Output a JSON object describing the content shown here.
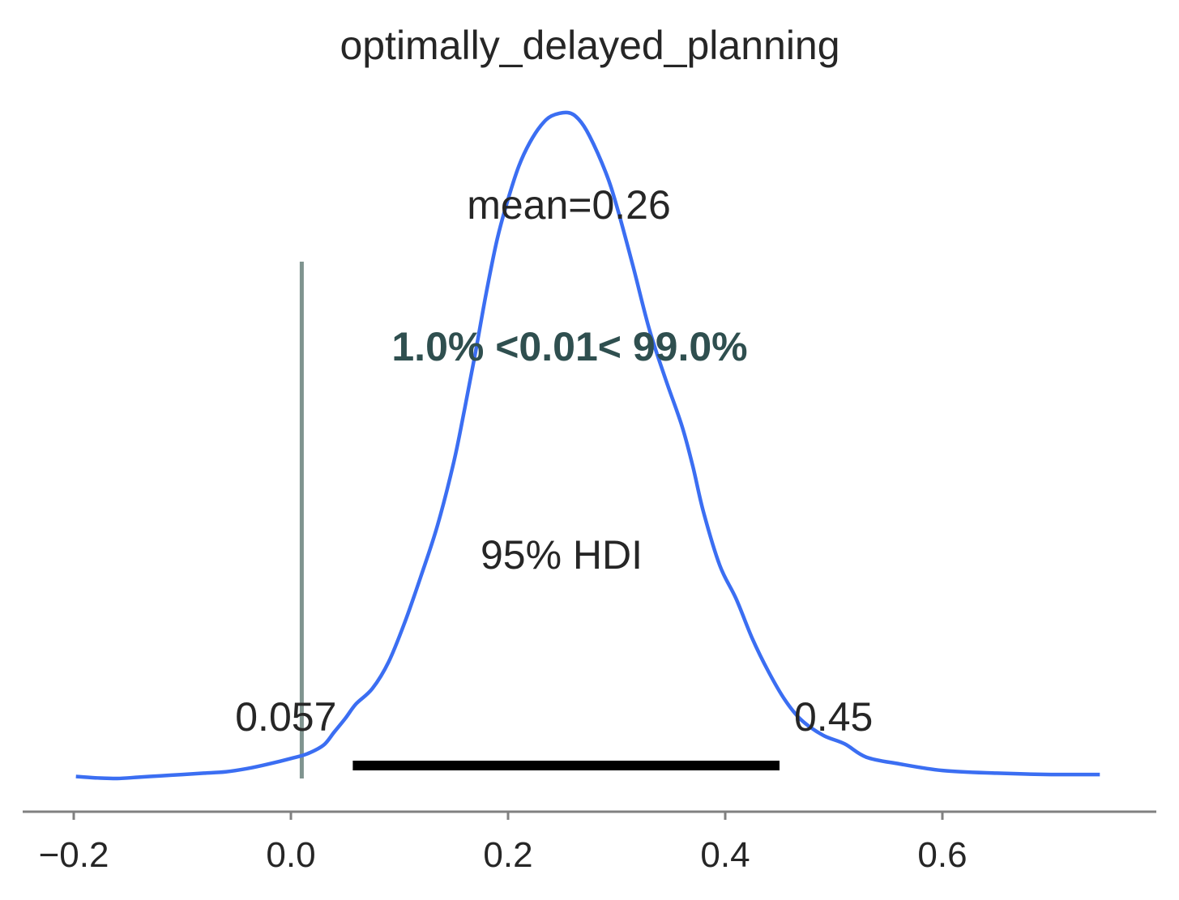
{
  "chart_data": {
    "type": "line",
    "title": "optimally_delayed_planning",
    "xlabel": "",
    "ylabel": "",
    "xlim": [
      -0.245,
      0.795
    ],
    "x_ticks": [
      -0.2,
      0.0,
      0.2,
      0.4,
      0.6
    ],
    "x_tick_labels": [
      "−0.2",
      "0.0",
      "0.2",
      "0.4",
      "0.6"
    ],
    "grid": false,
    "series": [
      {
        "type": "density",
        "color": "#3b6ef2",
        "points": [
          [
            -0.198,
            0.003
          ],
          [
            -0.18,
            0.001
          ],
          [
            -0.16,
            0.0
          ],
          [
            -0.14,
            0.002
          ],
          [
            -0.12,
            0.004
          ],
          [
            -0.1,
            0.006
          ],
          [
            -0.08,
            0.008
          ],
          [
            -0.06,
            0.01
          ],
          [
            -0.04,
            0.015
          ],
          [
            -0.02,
            0.022
          ],
          [
            0.0,
            0.03
          ],
          [
            0.015,
            0.037
          ],
          [
            0.03,
            0.05
          ],
          [
            0.04,
            0.07
          ],
          [
            0.05,
            0.09
          ],
          [
            0.06,
            0.112
          ],
          [
            0.075,
            0.135
          ],
          [
            0.09,
            0.175
          ],
          [
            0.105,
            0.235
          ],
          [
            0.12,
            0.305
          ],
          [
            0.135,
            0.38
          ],
          [
            0.15,
            0.475
          ],
          [
            0.16,
            0.555
          ],
          [
            0.17,
            0.64
          ],
          [
            0.18,
            0.73
          ],
          [
            0.19,
            0.81
          ],
          [
            0.2,
            0.87
          ],
          [
            0.21,
            0.92
          ],
          [
            0.22,
            0.955
          ],
          [
            0.23,
            0.98
          ],
          [
            0.24,
            0.995
          ],
          [
            0.255,
            1.0
          ],
          [
            0.265,
            0.99
          ],
          [
            0.275,
            0.965
          ],
          [
            0.29,
            0.91
          ],
          [
            0.3,
            0.86
          ],
          [
            0.315,
            0.77
          ],
          [
            0.33,
            0.675
          ],
          [
            0.345,
            0.6
          ],
          [
            0.36,
            0.53
          ],
          [
            0.37,
            0.47
          ],
          [
            0.38,
            0.4
          ],
          [
            0.395,
            0.32
          ],
          [
            0.41,
            0.27
          ],
          [
            0.425,
            0.21
          ],
          [
            0.44,
            0.16
          ],
          [
            0.455,
            0.118
          ],
          [
            0.47,
            0.088
          ],
          [
            0.49,
            0.065
          ],
          [
            0.51,
            0.052
          ],
          [
            0.53,
            0.032
          ],
          [
            0.56,
            0.022
          ],
          [
            0.6,
            0.012
          ],
          [
            0.65,
            0.008
          ],
          [
            0.7,
            0.006
          ],
          [
            0.745,
            0.006
          ]
        ]
      }
    ],
    "reference_line": {
      "x": 0.01,
      "color": "#7f948f"
    },
    "reference_text": "1.0% <0.01< 99.0%",
    "reference_text_color": "#2f4f4f",
    "mean_label": "mean=0.26",
    "mean": 0.26,
    "hdi": {
      "label": "95% HDI",
      "low": 0.057,
      "high": 0.45,
      "low_label": "0.057",
      "high_label": "0.45",
      "color": "#000000"
    }
  }
}
